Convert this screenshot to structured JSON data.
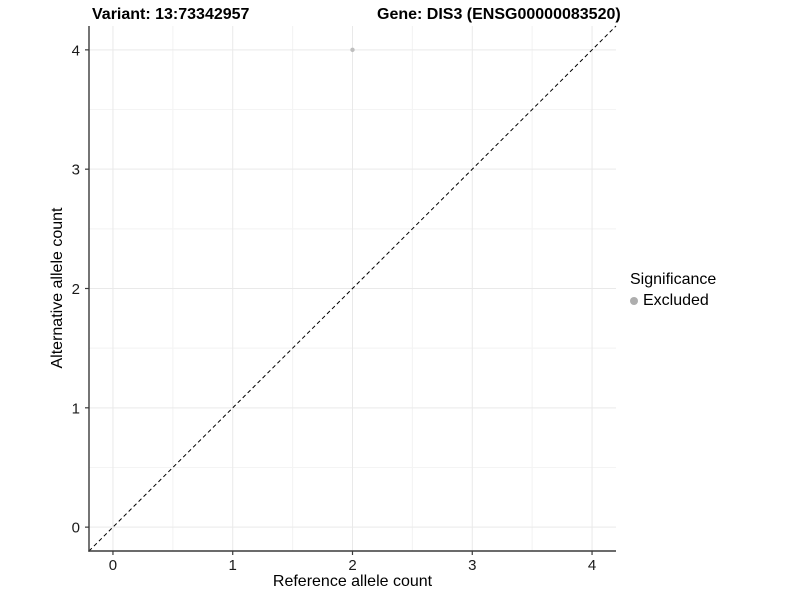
{
  "title": {
    "variant": "Variant: 13:73342957",
    "gene": "Gene: DIS3 (ENSG00000083520)"
  },
  "axes": {
    "x_label": "Reference allele count",
    "y_label": "Alternative allele count"
  },
  "legend": {
    "title": "Significance",
    "position": "right",
    "items": [
      {
        "label": "Excluded",
        "color": "#aeaeae"
      }
    ]
  },
  "chart_data": {
    "type": "scatter",
    "title": "Variant: 13:73342957   Gene: DIS3 (ENSG00000083520)",
    "xlabel": "Reference allele count",
    "ylabel": "Alternative allele count",
    "xlim": [
      -0.2,
      4.2
    ],
    "ylim": [
      -0.2,
      4.2
    ],
    "x_ticks": [
      0,
      1,
      2,
      3,
      4
    ],
    "y_ticks": [
      0,
      1,
      2,
      3,
      4
    ],
    "minor_grid_step": 0.5,
    "grid": true,
    "legend_position": "right",
    "series": [
      {
        "name": "Excluded",
        "color": "#bebebe",
        "points": [
          {
            "x": 2,
            "y": 4
          }
        ]
      }
    ],
    "reference_line": {
      "type": "identity-diagonal",
      "style": "dashed",
      "from": [
        -0.2,
        -0.2
      ],
      "to": [
        4.2,
        4.2
      ],
      "color": "#000000"
    }
  },
  "colors": {
    "background": "#ffffff",
    "grid_major": "#e9e9e9",
    "grid_minor": "#f4f4f4",
    "axis_line": "#3a3a3a",
    "tick_text": "#1a1a1a",
    "point": "#bebebe"
  }
}
